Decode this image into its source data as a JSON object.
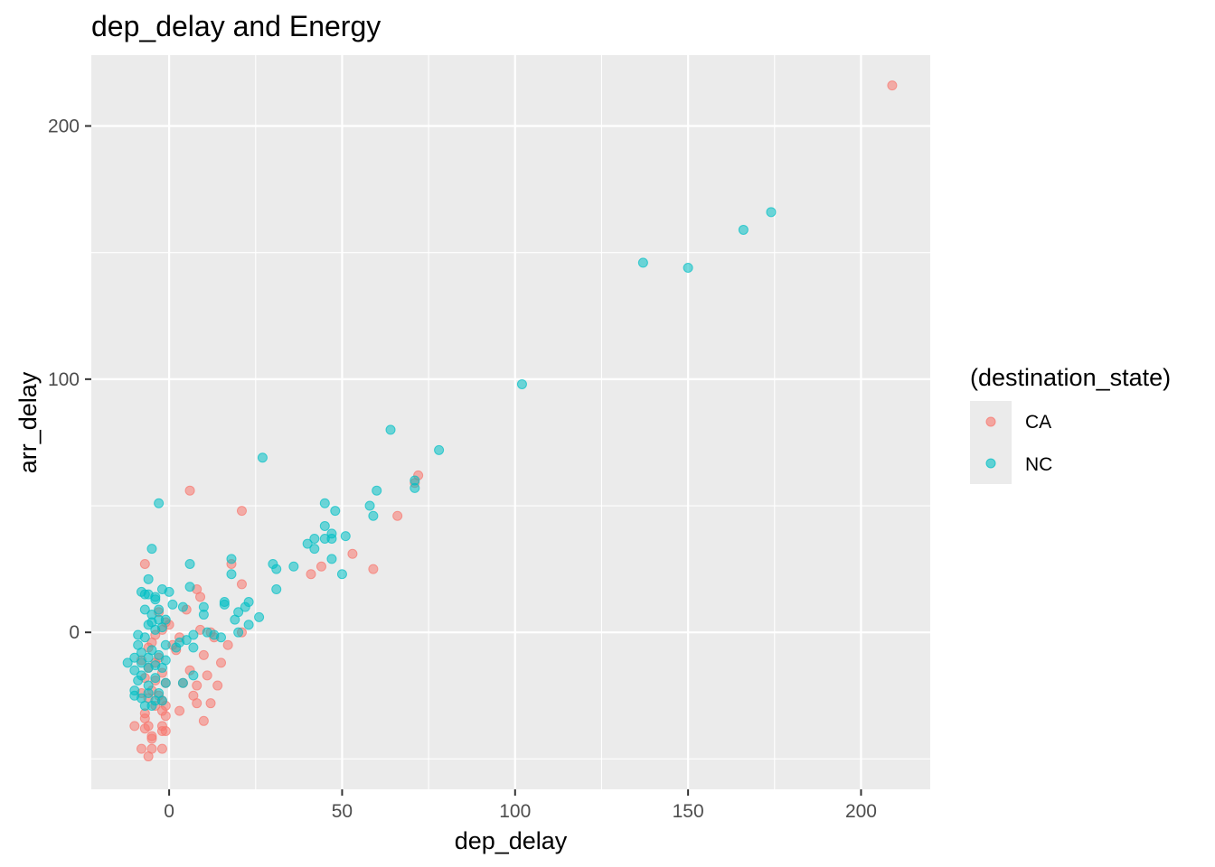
{
  "chart_data": {
    "type": "scatter",
    "title": "dep_delay and Energy",
    "xlabel": "dep_delay",
    "ylabel": "arr_delay",
    "xlim": [
      -22.5,
      220
    ],
    "ylim": [
      -62,
      228
    ],
    "x_ticks": [
      0,
      50,
      100,
      150,
      200
    ],
    "y_ticks": [
      0,
      100,
      200
    ],
    "grid": true,
    "legend": {
      "title": "(destination_state)",
      "placement": "right",
      "entries": [
        "CA",
        "NC"
      ]
    },
    "colors": {
      "CA": "#F8766D",
      "NC": "#00BFC4",
      "panel": "#EBEBEB",
      "grid": "#FFFFFF"
    },
    "series": [
      {
        "name": "CA",
        "points": [
          [
            209,
            216
          ],
          [
            72,
            62
          ],
          [
            71,
            59
          ],
          [
            66,
            46
          ],
          [
            59,
            25
          ],
          [
            53,
            31
          ],
          [
            44,
            26
          ],
          [
            41,
            23
          ],
          [
            6,
            56
          ],
          [
            21,
            48
          ],
          [
            -7,
            27
          ],
          [
            18,
            27
          ],
          [
            21,
            19
          ],
          [
            8,
            17
          ],
          [
            9,
            14
          ],
          [
            5,
            9
          ],
          [
            -3,
            8
          ],
          [
            -1,
            4
          ],
          [
            0,
            3
          ],
          [
            -2,
            1
          ],
          [
            9,
            1
          ],
          [
            12,
            0
          ],
          [
            21,
            0
          ],
          [
            -4,
            -1
          ],
          [
            3,
            -2
          ],
          [
            13,
            -2
          ],
          [
            -5,
            -4
          ],
          [
            1,
            -5
          ],
          [
            17,
            -5
          ],
          [
            -6,
            -6
          ],
          [
            2,
            -7
          ],
          [
            10,
            -9
          ],
          [
            -3,
            -10
          ],
          [
            -8,
            -11
          ],
          [
            -4,
            -12
          ],
          [
            15,
            -12
          ],
          [
            -6,
            -14
          ],
          [
            6,
            -15
          ],
          [
            -2,
            -16
          ],
          [
            11,
            -17
          ],
          [
            -7,
            -18
          ],
          [
            -4,
            -19
          ],
          [
            4,
            -20
          ],
          [
            -1,
            -20
          ],
          [
            8,
            -21
          ],
          [
            14,
            -21
          ],
          [
            -5,
            -23
          ],
          [
            -8,
            -24
          ],
          [
            -3,
            -25
          ],
          [
            7,
            -25
          ],
          [
            -6,
            -26
          ],
          [
            -2,
            -27
          ],
          [
            12,
            -28
          ],
          [
            8,
            -28
          ],
          [
            -4,
            -29
          ],
          [
            -1,
            -29
          ],
          [
            3,
            -31
          ],
          [
            -2,
            -31
          ],
          [
            -7,
            -32
          ],
          [
            -1,
            -33
          ],
          [
            -7,
            -34
          ],
          [
            10,
            -35
          ],
          [
            -10,
            -37
          ],
          [
            -2,
            -37
          ],
          [
            -6,
            -37
          ],
          [
            -7,
            -38
          ],
          [
            -1,
            -39
          ],
          [
            -2,
            -39
          ],
          [
            -5,
            -41
          ],
          [
            -5,
            -42
          ],
          [
            -8,
            -46
          ],
          [
            -5,
            -46
          ],
          [
            -2,
            -46
          ],
          [
            -6,
            -49
          ]
        ]
      },
      {
        "name": "NC",
        "points": [
          [
            174,
            166
          ],
          [
            166,
            159
          ],
          [
            137,
            146
          ],
          [
            150,
            144
          ],
          [
            102,
            98
          ],
          [
            64,
            80
          ],
          [
            78,
            72
          ],
          [
            27,
            69
          ],
          [
            71,
            60
          ],
          [
            71,
            57
          ],
          [
            60,
            56
          ],
          [
            -3,
            51
          ],
          [
            45,
            51
          ],
          [
            58,
            50
          ],
          [
            48,
            48
          ],
          [
            59,
            46
          ],
          [
            45,
            42
          ],
          [
            42,
            37
          ],
          [
            47,
            39
          ],
          [
            45,
            37
          ],
          [
            51,
            38
          ],
          [
            47,
            37
          ],
          [
            40,
            35
          ],
          [
            42,
            33
          ],
          [
            -5,
            33
          ],
          [
            18,
            29
          ],
          [
            47,
            29
          ],
          [
            30,
            27
          ],
          [
            6,
            27
          ],
          [
            36,
            26
          ],
          [
            31,
            25
          ],
          [
            18,
            23
          ],
          [
            50,
            23
          ],
          [
            -6,
            21
          ],
          [
            -6,
            15
          ],
          [
            -2,
            17
          ],
          [
            31,
            17
          ],
          [
            -8,
            16
          ],
          [
            -7,
            15
          ],
          [
            -4,
            14
          ],
          [
            -4,
            13
          ],
          [
            0,
            16
          ],
          [
            6,
            18
          ],
          [
            16,
            12
          ],
          [
            23,
            12
          ],
          [
            16,
            11
          ],
          [
            22,
            10
          ],
          [
            1,
            11
          ],
          [
            4,
            10
          ],
          [
            10,
            10
          ],
          [
            -7,
            9
          ],
          [
            -3,
            9
          ],
          [
            -5,
            7
          ],
          [
            10,
            7
          ],
          [
            20,
            8
          ],
          [
            -3,
            5
          ],
          [
            -5,
            4
          ],
          [
            -1,
            5
          ],
          [
            26,
            6
          ],
          [
            -6,
            3
          ],
          [
            -2,
            2
          ],
          [
            19,
            5
          ],
          [
            23,
            3
          ],
          [
            -4,
            1
          ],
          [
            7,
            -1
          ],
          [
            11,
            0
          ],
          [
            13,
            -1
          ],
          [
            -9,
            -1
          ],
          [
            15,
            -2
          ],
          [
            20,
            0
          ],
          [
            5,
            -3
          ],
          [
            -7,
            -2
          ],
          [
            3,
            -4
          ],
          [
            -9,
            -5
          ],
          [
            -1,
            -5
          ],
          [
            2,
            -6
          ],
          [
            7,
            -6
          ],
          [
            -5,
            -7
          ],
          [
            -8,
            -8
          ],
          [
            -3,
            -9
          ],
          [
            -10,
            -10
          ],
          [
            -6,
            -10
          ],
          [
            -1,
            -11
          ],
          [
            -12,
            -12
          ],
          [
            -8,
            -12
          ],
          [
            -4,
            -13
          ],
          [
            -6,
            -14
          ],
          [
            -2,
            -14
          ],
          [
            -10,
            -15
          ],
          [
            -8,
            -17
          ],
          [
            7,
            -17
          ],
          [
            -4,
            -18
          ],
          [
            -9,
            -19
          ],
          [
            -1,
            -20
          ],
          [
            4,
            -20
          ],
          [
            -6,
            -21
          ],
          [
            -10,
            -23
          ],
          [
            -6,
            -24
          ],
          [
            -3,
            -24
          ],
          [
            -10,
            -25
          ],
          [
            -8,
            -26
          ],
          [
            -4,
            -27
          ],
          [
            -2,
            -27
          ],
          [
            -7,
            -29
          ],
          [
            -5,
            -29
          ]
        ]
      }
    ]
  }
}
